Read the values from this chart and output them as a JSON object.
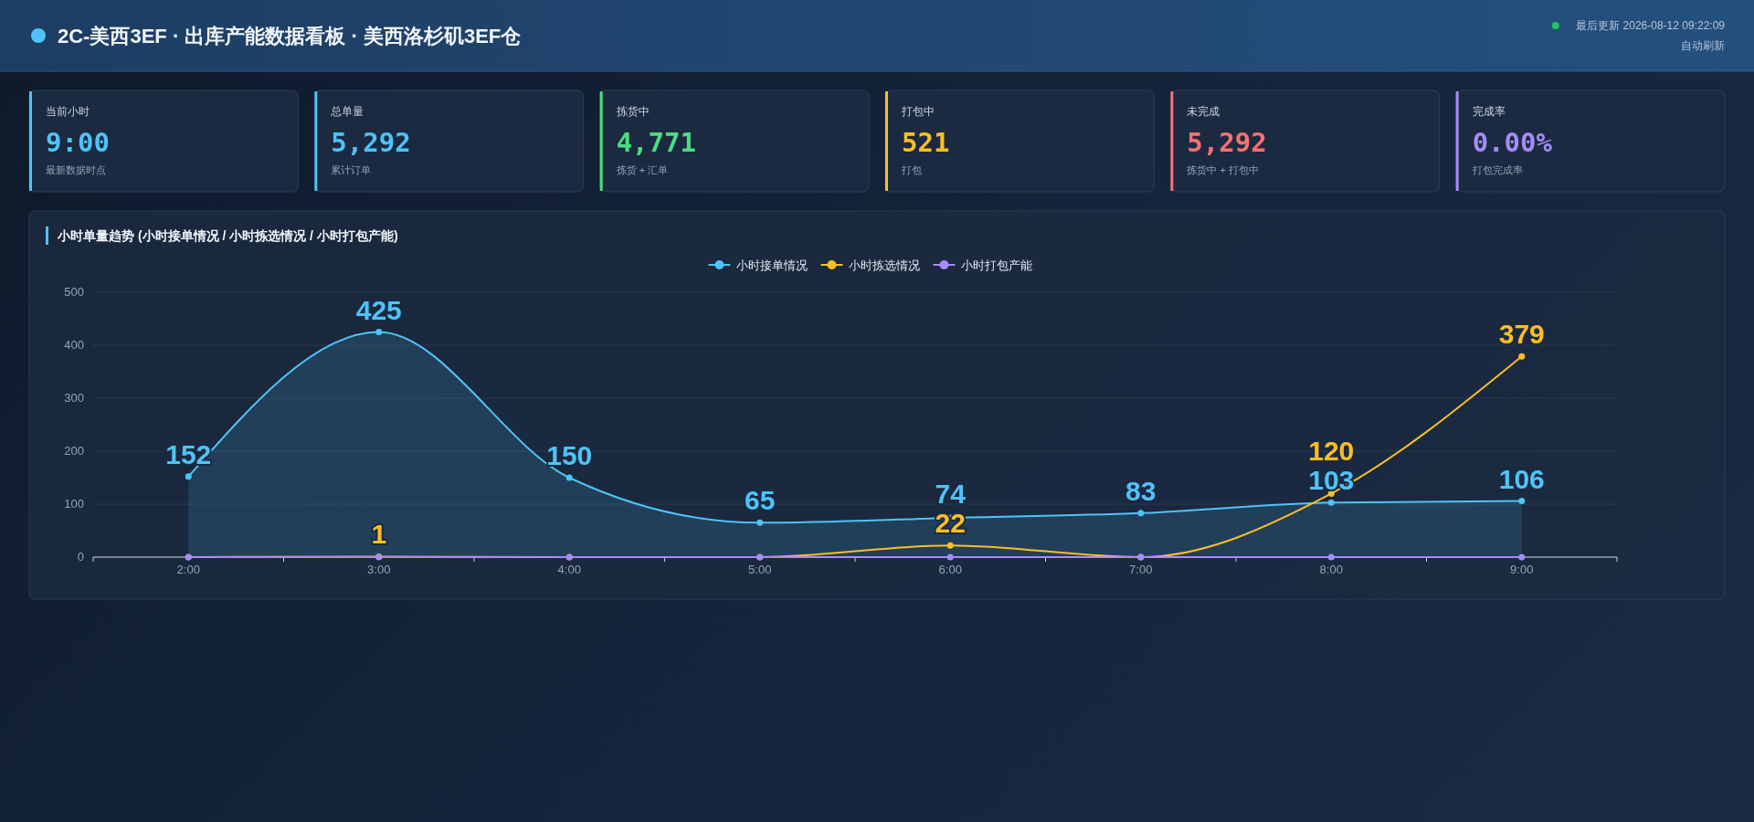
{
  "chart_data": [
    {
      "type": "other",
      "title": "2C-美西3EF · 出库产能数据看板 · 美西洛杉矶3EF仓",
      "annotations": [
        "最后更新 2026-08-12 09:22:09",
        "自动刷新"
      ],
      "color": "#4fc3f7"
    },
    {
      "type": "other",
      "title": "当前小时",
      "value_labels": [
        "9:00"
      ],
      "subtitle": "最新数据时点",
      "color": "#4fc3f7"
    },
    {
      "type": "other",
      "title": "总单量",
      "value_labels": [
        "5,292"
      ],
      "subtitle": "累计订单",
      "color": "#4fc3f7"
    },
    {
      "type": "other",
      "title": "拣货中",
      "value_labels": [
        "4,771"
      ],
      "subtitle": "拣货 + 汇单",
      "color": "#4ade80"
    },
    {
      "type": "other",
      "title": "打包中",
      "value_labels": [
        "521"
      ],
      "subtitle": "打包",
      "color": "#fbbf24"
    },
    {
      "type": "other",
      "title": "未完成",
      "value_labels": [
        "5,292"
      ],
      "subtitle": "拣货中 + 打包中",
      "color": "#f87171"
    },
    {
      "type": "other",
      "title": "完成率",
      "value_labels": [
        "0.00%"
      ],
      "subtitle": "打包完成率",
      "color": "#a78bfa"
    },
    {
      "type": "line",
      "title": "小时单量趋势 (小时接单情况 / 小时拣选情况 / 小时打包产能)",
      "categories": [
        "2:00",
        "3:00",
        "4:00",
        "5:00",
        "6:00",
        "7:00",
        "8:00",
        "9:00"
      ],
      "series": [
        {
          "name": "小时接单情况",
          "type": "area",
          "color": "#4fc3f7",
          "values": [
            152,
            425,
            150,
            65,
            74,
            83,
            103,
            106
          ],
          "value_labels": [
            "152",
            "425",
            "150",
            "65",
            "74",
            "83",
            "103",
            "106"
          ]
        },
        {
          "name": "小时拣选情况",
          "color": "#fbbf24",
          "values": [
            0,
            1,
            0,
            0,
            22,
            0,
            120,
            379
          ],
          "value_labels": [
            null,
            "1",
            null,
            null,
            "22",
            null,
            "120",
            "379"
          ]
        },
        {
          "name": "小时打包产能",
          "color": "#a78bfa",
          "values": [
            0,
            0,
            0,
            0,
            0,
            0,
            0,
            0
          ]
        }
      ],
      "ylim": [
        0,
        500
      ],
      "yticks": [
        0,
        100,
        200,
        300,
        400,
        500
      ],
      "grid": "y",
      "legend": "top",
      "marker": "circle"
    }
  ]
}
